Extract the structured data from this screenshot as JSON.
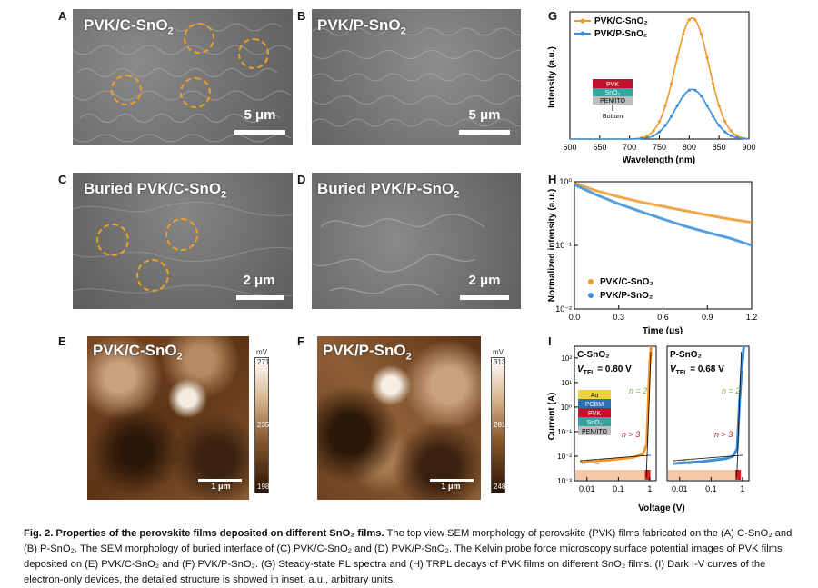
{
  "panel_letters": [
    "A",
    "B",
    "C",
    "D",
    "E",
    "F",
    "G",
    "H",
    "I"
  ],
  "sem": {
    "a_title": "PVK/C-SnO",
    "b_title": "PVK/P-SnO",
    "c_title": "Buried PVK/C-SnO",
    "d_title": "Buried PVK/P-SnO",
    "sub2": "2",
    "scale_5um": "5 μm",
    "scale_2um": "2 μm"
  },
  "kpfm": {
    "e_title": "PVK/C-SnO",
    "f_title": "PVK/P-SnO",
    "sub2": "2",
    "scale_1um": "1 μm",
    "unit": "mV",
    "e_ticks": [
      "271",
      "235",
      "198"
    ],
    "f_ticks": [
      "313",
      "281",
      "248"
    ]
  },
  "stack_g": [
    "PVK",
    "SnO₂",
    "PEN/ITO"
  ],
  "stack_g_arrow": "Bottom",
  "stack_i": [
    "Au",
    "PCBM",
    "PVK",
    "SnO₂",
    "PEN/ITO"
  ],
  "colors": {
    "orange": "#f0982a",
    "blue": "#3a8fd8",
    "pvk": "#c0142a",
    "sno2": "#3aa3a0",
    "ito": "#bdbdbd",
    "au": "#f2d23c",
    "pcbm": "#2f6fb5"
  },
  "chart_data": [
    {
      "panel": "G",
      "type": "line",
      "xlabel": "Wavelength (nm)",
      "ylabel": "Intensity (a.u.)",
      "xlim": [
        600,
        900
      ],
      "xticks": [
        "600",
        "650",
        "700",
        "750",
        "800",
        "850",
        "900"
      ],
      "ylim": [
        0,
        1.05
      ],
      "series": [
        {
          "name": "PVK/C-SnO₂",
          "peak_x": 805,
          "peak_y": 1.0,
          "width": 28
        },
        {
          "name": "PVK/P-SnO₂",
          "peak_x": 805,
          "peak_y": 0.41,
          "width": 28
        }
      ]
    },
    {
      "panel": "H",
      "type": "line",
      "xlabel": "Time (μs)",
      "ylabel": "Normalized intensity (a.u.)",
      "xlim": [
        0,
        1.2
      ],
      "xticks": [
        "0.0",
        "0.3",
        "0.6",
        "0.9",
        "1.2"
      ],
      "yscale": "log",
      "ylim": [
        0.01,
        1
      ],
      "yticks": [
        "10⁻²",
        "10⁻¹",
        "10⁰"
      ],
      "series": [
        {
          "name": "PVK/C-SnO₂",
          "x": [
            0,
            0.15,
            0.3,
            0.45,
            0.6,
            0.75,
            0.9,
            1.05,
            1.2
          ],
          "y": [
            0.95,
            0.72,
            0.58,
            0.48,
            0.41,
            0.35,
            0.3,
            0.26,
            0.23
          ]
        },
        {
          "name": "PVK/P-SnO₂",
          "x": [
            0,
            0.15,
            0.3,
            0.45,
            0.6,
            0.75,
            0.9,
            1.05,
            1.2
          ],
          "y": [
            0.9,
            0.62,
            0.45,
            0.34,
            0.26,
            0.2,
            0.16,
            0.13,
            0.1
          ]
        }
      ]
    },
    {
      "panel": "I",
      "type": "line",
      "xlabel": "Voltage (V)",
      "ylabel": "Current (A)",
      "xscale": "log",
      "yscale": "log",
      "xticks": [
        "0.01",
        "0.1",
        "1"
      ],
      "yticks": [
        "10⁻³",
        "10⁻²",
        "10⁻¹",
        "10⁰",
        "10¹",
        "10²"
      ],
      "subplots": [
        {
          "title": "C-SnO₂",
          "vtfl_label": "V",
          "vtfl_sub": "TFL",
          "vtfl_value": "= 0.80 V",
          "vtfl": 0.8,
          "x": [
            0.006,
            0.05,
            0.3,
            0.6,
            0.8,
            0.9,
            1.0,
            1.1
          ],
          "y": [
            0.006,
            0.007,
            0.009,
            0.012,
            0.03,
            2,
            60,
            300
          ]
        },
        {
          "title": "P-SnO₂",
          "vtfl_label": "V",
          "vtfl_sub": "TFL",
          "vtfl_value": "= 0.68 V",
          "vtfl": 0.68,
          "x": [
            0.006,
            0.05,
            0.3,
            0.5,
            0.68,
            0.8,
            0.95,
            1.1
          ],
          "y": [
            0.005,
            0.006,
            0.008,
            0.01,
            0.02,
            1.5,
            40,
            300
          ]
        }
      ],
      "annotations": [
        "n = 2",
        "n > 3",
        "n = 1"
      ]
    }
  ],
  "caption": {
    "bold": "Fig. 2. Properties of the perovskite films deposited on different SnO₂ films.",
    "text": " The top view SEM morphology of perovskite (PVK) films fabricated on the (A) C-SnO₂ and (B) P-SnO₂. The SEM morphology of buried interface of (C) PVK/C-SnO₂ and (D) PVK/P-SnO₂. The Kelvin probe force microscopy surface potential images of PVK films deposited on (E) PVK/C-SnO₂ and (F) PVK/P-SnO₂. (G) Steady-state PL spectra and (H) TRPL decays of PVK films on different SnO₂ films. (I) Dark I-V curves of the electron-only devices, the detailed structure is showed in inset. a.u., arbitrary units."
  }
}
